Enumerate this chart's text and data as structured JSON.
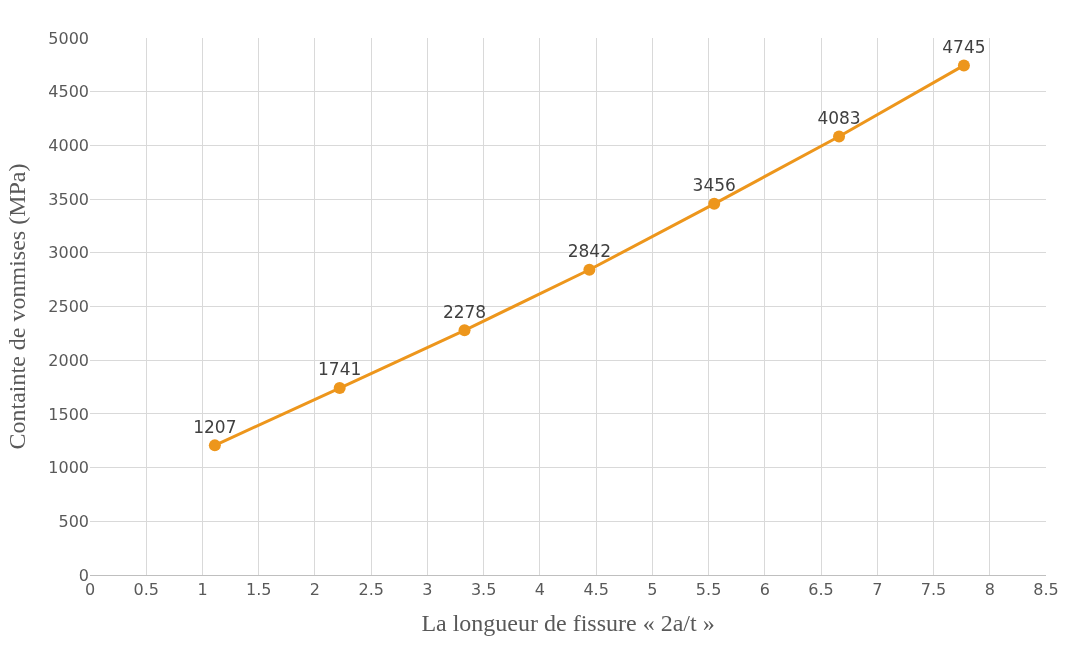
{
  "chart_data": {
    "type": "line",
    "xlabel": "La longueur de fissure « 2a/t »",
    "ylabel": "Containte de vonmises (MPa)",
    "x": [
      1.11,
      2.22,
      3.33,
      4.44,
      5.55,
      6.66,
      7.77
    ],
    "series": [
      {
        "color": "#ed961c",
        "values": [
          1207,
          1741,
          2278,
          2842,
          3456,
          4083,
          4745
        ]
      }
    ],
    "xlim": [
      0,
      8.5
    ],
    "xticks": [
      0,
      0.5,
      1,
      1.5,
      2,
      2.5,
      3,
      3.5,
      4,
      4.5,
      5,
      5.5,
      6,
      6.5,
      7,
      7.5,
      8,
      8.5
    ],
    "ylim": [
      0,
      5000
    ],
    "yticks": [
      0,
      500,
      1000,
      1500,
      2000,
      2500,
      3000,
      3500,
      4000,
      4500,
      5000
    ],
    "grid": true,
    "marker": "circle",
    "line_style": "solid",
    "data_labels": true,
    "legend": false
  }
}
